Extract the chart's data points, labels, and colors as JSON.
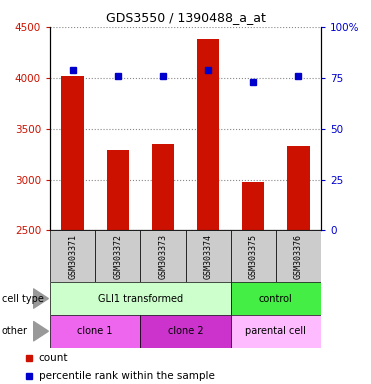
{
  "title": "GDS3550 / 1390488_a_at",
  "samples": [
    "GSM303371",
    "GSM303372",
    "GSM303373",
    "GSM303374",
    "GSM303375",
    "GSM303376"
  ],
  "counts": [
    4020,
    3295,
    3345,
    4380,
    2975,
    3325
  ],
  "percentile_ranks": [
    79,
    76,
    76,
    79,
    73,
    76
  ],
  "ylim_left": [
    2500,
    4500
  ],
  "ylim_right": [
    0,
    100
  ],
  "yticks_left": [
    2500,
    3000,
    3500,
    4000,
    4500
  ],
  "yticks_right": [
    0,
    25,
    50,
    75,
    100
  ],
  "ytick_labels_right": [
    "0",
    "25",
    "50",
    "75",
    "100%"
  ],
  "bar_color": "#cc1100",
  "dot_color": "#0000cc",
  "cell_type_groups": [
    {
      "label": "GLI1 transformed",
      "start": 0,
      "end": 4,
      "color": "#ccffcc"
    },
    {
      "label": "control",
      "start": 4,
      "end": 6,
      "color": "#44ee44"
    }
  ],
  "other_groups": [
    {
      "label": "clone 1",
      "start": 0,
      "end": 2,
      "color": "#ee66ee"
    },
    {
      "label": "clone 2",
      "start": 2,
      "end": 4,
      "color": "#cc33cc"
    },
    {
      "label": "parental cell",
      "start": 4,
      "end": 6,
      "color": "#ffbbff"
    }
  ],
  "legend_items": [
    {
      "label": "count",
      "color": "#cc1100"
    },
    {
      "label": "percentile rank within the sample",
      "color": "#0000cc"
    }
  ],
  "background_color": "#ffffff",
  "tick_label_color_left": "#cc1100",
  "tick_label_color_right": "#0000cc",
  "xlabel_bg": "#cccccc"
}
